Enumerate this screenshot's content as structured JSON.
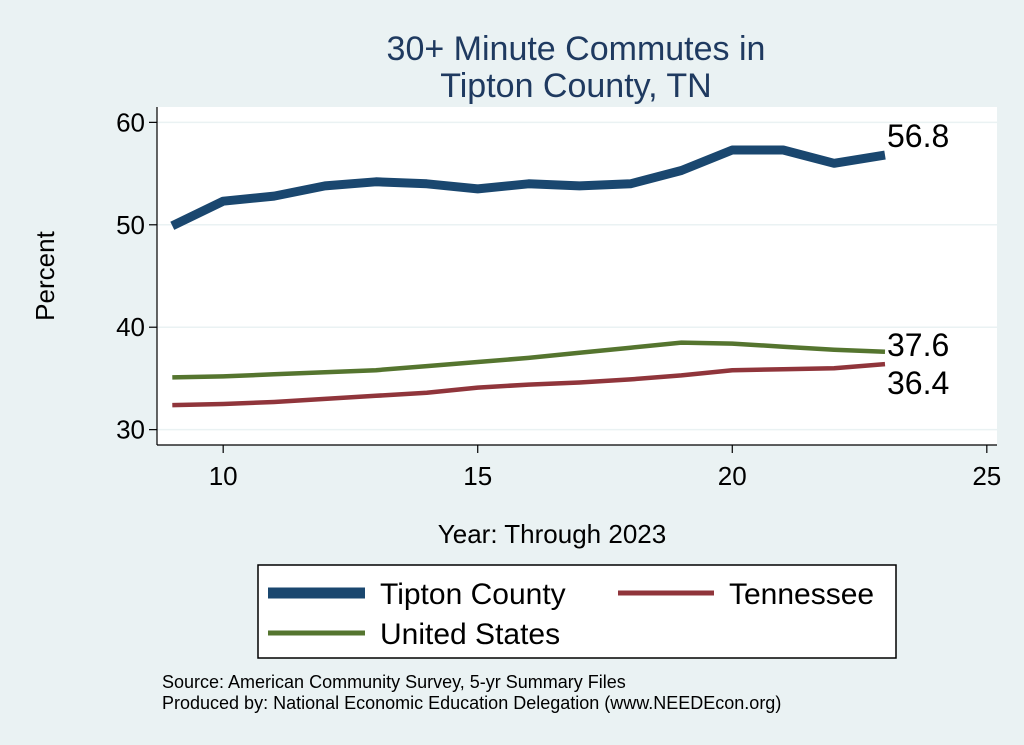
{
  "chart_data": {
    "type": "line",
    "title": [
      "30+ Minute Commutes in",
      "Tipton County, TN"
    ],
    "xlabel": "Year: Through 2023",
    "ylabel": "Percent",
    "xlim": [
      8.7,
      25.2
    ],
    "ylim": [
      28.5,
      61.5
    ],
    "x_ticks": [
      10,
      15,
      20,
      25
    ],
    "y_ticks": [
      30,
      40,
      50,
      60
    ],
    "grid": true,
    "legend_position": "bottom",
    "series": [
      {
        "name": "Tipton County",
        "color": "#1a476f",
        "x": [
          9,
          10,
          11,
          12,
          13,
          14,
          15,
          16,
          17,
          18,
          19,
          20,
          21,
          22,
          23
        ],
        "values": [
          49.9,
          52.3,
          52.8,
          53.8,
          54.2,
          54.0,
          53.5,
          54.0,
          53.8,
          54.0,
          55.3,
          57.3,
          57.3,
          56.0,
          56.8
        ],
        "end_label": "56.8"
      },
      {
        "name": "Tennessee",
        "color": "#90353b",
        "x": [
          9,
          10,
          11,
          12,
          13,
          14,
          15,
          16,
          17,
          18,
          19,
          20,
          21,
          22,
          23
        ],
        "values": [
          32.4,
          32.5,
          32.7,
          33.0,
          33.3,
          33.6,
          34.1,
          34.4,
          34.6,
          34.9,
          35.3,
          35.8,
          35.9,
          36.0,
          36.4
        ],
        "end_label": "36.4"
      },
      {
        "name": "United States",
        "color": "#55752f",
        "x": [
          9,
          10,
          11,
          12,
          13,
          14,
          15,
          16,
          17,
          18,
          19,
          20,
          21,
          22,
          23
        ],
        "values": [
          35.1,
          35.2,
          35.4,
          35.6,
          35.8,
          36.2,
          36.6,
          37.0,
          37.5,
          38.0,
          38.5,
          38.4,
          38.1,
          37.8,
          37.6
        ],
        "end_label": "37.6"
      }
    ]
  },
  "notes": [
    "Source: American Community Survey, 5-yr Summary Files",
    "Produced by: National Economic Education Delegation (www.NEEDEcon.org)"
  ]
}
